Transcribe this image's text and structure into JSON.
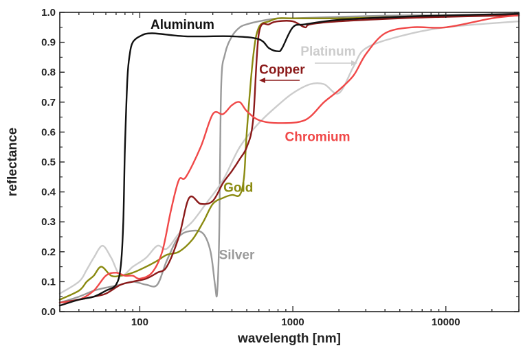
{
  "chart_data": {
    "type": "line",
    "xlabel": "wavelength [nm]",
    "ylabel": "reflectance",
    "xscale": "log",
    "xlim": [
      30,
      30000
    ],
    "ylim": [
      0.0,
      1.0
    ],
    "x_ticks": [
      {
        "value": 100,
        "label": "100"
      },
      {
        "value": 1000,
        "label": "1000"
      },
      {
        "value": 10000,
        "label": "10000"
      }
    ],
    "y_ticks": [
      {
        "value": 0.0,
        "label": "0.0"
      },
      {
        "value": 0.1,
        "label": "0.1"
      },
      {
        "value": 0.2,
        "label": "0.2"
      },
      {
        "value": 0.3,
        "label": "0.3"
      },
      {
        "value": 0.4,
        "label": "0.4"
      },
      {
        "value": 0.5,
        "label": "0.5"
      },
      {
        "value": 0.6,
        "label": "0.6"
      },
      {
        "value": 0.7,
        "label": "0.7"
      },
      {
        "value": 0.8,
        "label": "0.8"
      },
      {
        "value": 0.9,
        "label": "0.9"
      },
      {
        "value": 1.0,
        "label": "1.0"
      }
    ],
    "grid": false,
    "series": [
      {
        "name": "Silver",
        "color": "#9a9a9a",
        "x": [
          30,
          40,
          50,
          60,
          75,
          90,
          110,
          130,
          150,
          180,
          220,
          260,
          290,
          310,
          320,
          330,
          340,
          360,
          400,
          450,
          500,
          600,
          800,
          1000,
          2000,
          5000,
          10000,
          30000
        ],
        "y": [
          0.03,
          0.05,
          0.07,
          0.08,
          0.09,
          0.1,
          0.09,
          0.09,
          0.17,
          0.25,
          0.27,
          0.26,
          0.2,
          0.09,
          0.06,
          0.25,
          0.75,
          0.86,
          0.92,
          0.95,
          0.96,
          0.97,
          0.98,
          0.98,
          0.985,
          0.99,
          0.99,
          0.995
        ]
      },
      {
        "name": "Platinum",
        "color": "#cccccc",
        "x": [
          30,
          40,
          45,
          50,
          57,
          65,
          75,
          90,
          110,
          130,
          150,
          180,
          220,
          270,
          350,
          450,
          600,
          800,
          1000,
          1300,
          1600,
          2000,
          2500,
          3000,
          5000,
          10000,
          30000
        ],
        "y": [
          0.06,
          0.1,
          0.14,
          0.18,
          0.22,
          0.18,
          0.12,
          0.15,
          0.18,
          0.22,
          0.21,
          0.26,
          0.3,
          0.36,
          0.44,
          0.55,
          0.63,
          0.69,
          0.73,
          0.76,
          0.76,
          0.73,
          0.82,
          0.88,
          0.92,
          0.95,
          0.97
        ]
      },
      {
        "name": "Gold",
        "color": "#8a8a10",
        "x": [
          30,
          40,
          45,
          50,
          56,
          65,
          75,
          90,
          110,
          130,
          150,
          180,
          220,
          260,
          300,
          350,
          400,
          450,
          480,
          500,
          550,
          600,
          700,
          800,
          1000,
          2000,
          5000,
          10000
        ],
        "y": [
          0.04,
          0.07,
          0.1,
          0.12,
          0.15,
          0.12,
          0.12,
          0.13,
          0.15,
          0.17,
          0.19,
          0.2,
          0.24,
          0.3,
          0.36,
          0.38,
          0.39,
          0.39,
          0.45,
          0.6,
          0.85,
          0.95,
          0.97,
          0.98,
          0.98,
          0.98,
          0.985,
          0.99
        ]
      },
      {
        "name": "Copper",
        "color": "#8b1a1a",
        "x": [
          30,
          40,
          50,
          60,
          75,
          90,
          110,
          130,
          150,
          180,
          210,
          250,
          300,
          350,
          400,
          450,
          500,
          550,
          600,
          700,
          800,
          1000,
          1200,
          1300,
          2000,
          5000,
          10000,
          30000
        ],
        "y": [
          0.03,
          0.04,
          0.05,
          0.06,
          0.09,
          0.1,
          0.11,
          0.13,
          0.15,
          0.25,
          0.38,
          0.36,
          0.37,
          0.43,
          0.47,
          0.51,
          0.55,
          0.64,
          0.93,
          0.96,
          0.97,
          0.97,
          0.95,
          0.96,
          0.97,
          0.98,
          0.985,
          0.99
        ]
      },
      {
        "name": "Chromium",
        "color": "#f04848",
        "x": [
          30,
          40,
          50,
          60,
          70,
          80,
          90,
          100,
          120,
          140,
          160,
          180,
          200,
          250,
          300,
          350,
          400,
          450,
          500,
          600,
          800,
          1200,
          1600,
          2000,
          2500,
          3000,
          4000,
          6000,
          10000,
          20000,
          30000
        ],
        "y": [
          0.03,
          0.04,
          0.07,
          0.12,
          0.13,
          0.12,
          0.12,
          0.11,
          0.13,
          0.2,
          0.34,
          0.44,
          0.45,
          0.55,
          0.66,
          0.66,
          0.69,
          0.7,
          0.67,
          0.64,
          0.63,
          0.64,
          0.7,
          0.74,
          0.79,
          0.86,
          0.93,
          0.95,
          0.95,
          0.98,
          0.99
        ]
      },
      {
        "name": "Aluminum",
        "color": "#111111",
        "x": [
          30,
          40,
          50,
          60,
          70,
          75,
          78,
          80,
          83,
          86,
          90,
          100,
          120,
          200,
          400,
          600,
          700,
          800,
          850,
          1000,
          1200,
          2000,
          5000,
          10000,
          30000
        ],
        "y": [
          0.02,
          0.04,
          0.05,
          0.07,
          0.09,
          0.15,
          0.3,
          0.55,
          0.78,
          0.86,
          0.9,
          0.92,
          0.93,
          0.92,
          0.92,
          0.91,
          0.88,
          0.87,
          0.88,
          0.95,
          0.96,
          0.975,
          0.985,
          0.99,
          0.995
        ]
      }
    ],
    "annotations": [
      {
        "series": "Aluminum",
        "text": "Aluminum",
        "x": 190,
        "y": 0.945
      },
      {
        "series": "Platinum",
        "text": "Platinum",
        "x": 1700,
        "y": 0.855
      },
      {
        "series": "Copper",
        "text": "Copper",
        "x": 850,
        "y": 0.795
      },
      {
        "series": "Chromium",
        "text": "Chromium",
        "x": 1450,
        "y": 0.57
      },
      {
        "series": "Gold",
        "text": "Gold",
        "x": 440,
        "y": 0.4
      },
      {
        "series": "Silver",
        "text": "Silver",
        "x": 430,
        "y": 0.175
      }
    ]
  }
}
